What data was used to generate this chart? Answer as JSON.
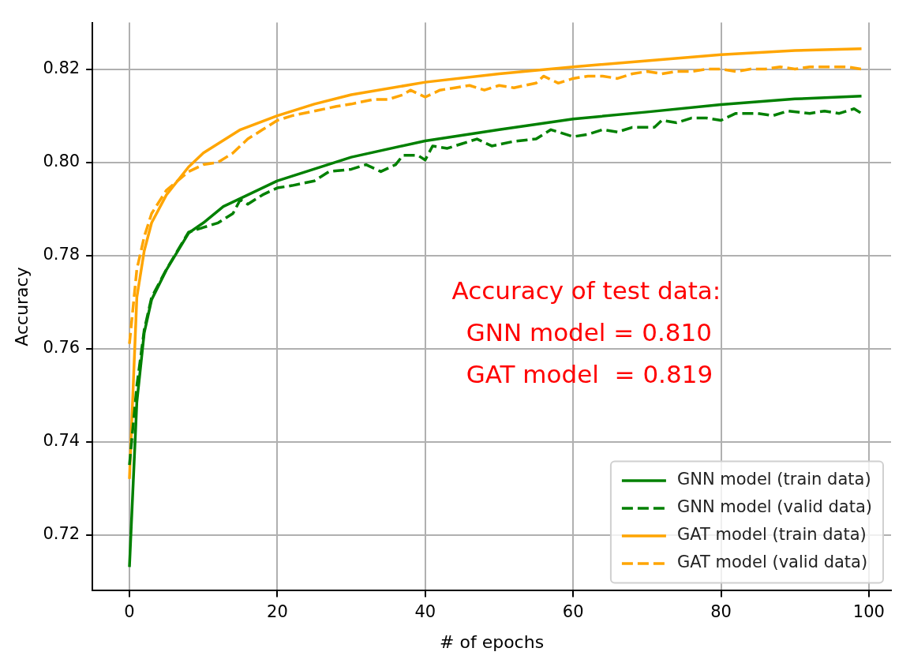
{
  "chart_data": {
    "type": "line",
    "xlabel": "# of epochs",
    "ylabel": "Accuracy",
    "xlim": [
      -5,
      103
    ],
    "ylim": [
      0.708,
      0.83
    ],
    "xticks": [
      0,
      20,
      40,
      60,
      80,
      100
    ],
    "yticks": [
      0.72,
      0.74,
      0.76,
      0.78,
      {
        "value": 0.8,
        "label": "0.80"
      },
      0.82
    ],
    "grid": true,
    "legend": "bottom right",
    "marker": "none",
    "annotations": [
      "Accuracy of test data:",
      "GNN model = 0.810",
      "GAT model  = 0.819"
    ],
    "series": [
      {
        "name": "GNN model (train data)",
        "color": "#008000",
        "line_style": "solid",
        "x": [
          0,
          1,
          2,
          3,
          5,
          8,
          10,
          12.7,
          20,
          30,
          40,
          50,
          60,
          70,
          80,
          90,
          99
        ],
        "values": [
          0.7131,
          0.7485,
          0.7634,
          0.7705,
          0.7769,
          0.7848,
          0.787,
          0.7905,
          0.796,
          0.8011,
          0.8046,
          0.807,
          0.8093,
          0.8108,
          0.8124,
          0.8136,
          0.8142
        ]
      },
      {
        "name": "GNN model (valid data)",
        "color": "#008000",
        "line_style": "dashed",
        "x": [
          0,
          1,
          2,
          3,
          5,
          8,
          10,
          12,
          14,
          15,
          16,
          18,
          20,
          22,
          25,
          27,
          30,
          32,
          34,
          36,
          37,
          39,
          40,
          41,
          43,
          45,
          47,
          49,
          52,
          55,
          57,
          60,
          62,
          64,
          66,
          68,
          71,
          72,
          74,
          76,
          78,
          80,
          82,
          85,
          87,
          89,
          92,
          94,
          96,
          98,
          99
        ],
        "values": [
          0.735,
          0.752,
          0.764,
          0.771,
          0.777,
          0.785,
          0.786,
          0.787,
          0.789,
          0.792,
          0.791,
          0.793,
          0.7945,
          0.795,
          0.796,
          0.798,
          0.7985,
          0.7995,
          0.798,
          0.7995,
          0.8015,
          0.8015,
          0.8005,
          0.8035,
          0.803,
          0.804,
          0.805,
          0.8035,
          0.8045,
          0.805,
          0.807,
          0.8055,
          0.806,
          0.807,
          0.8065,
          0.8075,
          0.8075,
          0.809,
          0.8085,
          0.8095,
          0.8095,
          0.809,
          0.8105,
          0.8105,
          0.81,
          0.811,
          0.8105,
          0.811,
          0.8105,
          0.8115,
          0.8105
        ]
      },
      {
        "name": "GAT model (train data)",
        "color": "#ffa500",
        "line_style": "solid",
        "x": [
          0,
          1,
          2,
          3,
          5,
          8,
          10,
          15,
          20,
          25,
          30,
          40,
          50,
          60,
          70,
          80,
          90,
          99
        ],
        "values": [
          0.732,
          0.771,
          0.781,
          0.787,
          0.793,
          0.799,
          0.802,
          0.807,
          0.81,
          0.8125,
          0.8145,
          0.8172,
          0.819,
          0.8205,
          0.8218,
          0.8231,
          0.824,
          0.8244
        ]
      },
      {
        "name": "GAT model (valid data)",
        "color": "#ffa500",
        "line_style": "dashed",
        "x": [
          0,
          1,
          2,
          3,
          5,
          8,
          10,
          12,
          14,
          16,
          18,
          20,
          22,
          25,
          28,
          30,
          33,
          35,
          37,
          38,
          40,
          42,
          44,
          46,
          48,
          50,
          52,
          55,
          56,
          58,
          60,
          62,
          64,
          66,
          68,
          70,
          72,
          74,
          76,
          78,
          80,
          82,
          84,
          86,
          88,
          90,
          92,
          95,
          97,
          99
        ],
        "values": [
          0.761,
          0.777,
          0.784,
          0.789,
          0.794,
          0.798,
          0.7995,
          0.8,
          0.802,
          0.805,
          0.807,
          0.809,
          0.81,
          0.811,
          0.812,
          0.8125,
          0.8135,
          0.8135,
          0.8145,
          0.8155,
          0.814,
          0.8155,
          0.816,
          0.8165,
          0.8155,
          0.8165,
          0.816,
          0.817,
          0.8185,
          0.817,
          0.818,
          0.8185,
          0.8185,
          0.818,
          0.819,
          0.8195,
          0.819,
          0.8195,
          0.8195,
          0.82,
          0.82,
          0.8195,
          0.82,
          0.82,
          0.8205,
          0.82,
          0.8205,
          0.8205,
          0.8205,
          0.82
        ]
      }
    ]
  }
}
